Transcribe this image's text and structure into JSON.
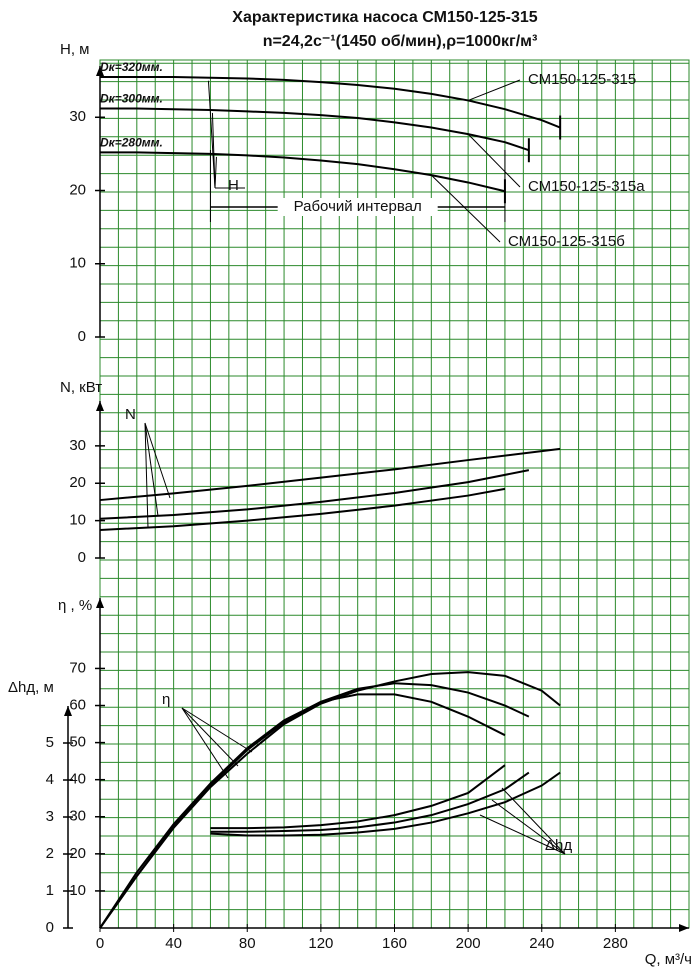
{
  "title": "Характеристика насоса СМ150-125-315",
  "subtitle": "n=24,2с⁻¹(1450 об/мин),ρ=1000кг/м³",
  "chart_data": [
    {
      "type": "line",
      "ylabel": "H, м",
      "ylim": [
        0,
        37
      ],
      "yticks": [
        0,
        10,
        20,
        30
      ],
      "series": [
        {
          "name": "СМ150-125-315",
          "annotation": "Dк=320мм.",
          "color": "#000000",
          "x": [
            0,
            20,
            40,
            60,
            80,
            100,
            120,
            140,
            160,
            180,
            200,
            220,
            240,
            250
          ],
          "values": [
            35.5,
            35.5,
            35.5,
            35.4,
            35.3,
            35.1,
            34.8,
            34.4,
            33.9,
            33.2,
            32.3,
            31.1,
            29.6,
            28.6
          ]
        },
        {
          "name": "СМ150-125-315а",
          "annotation": "Dк=300мм.",
          "color": "#000000",
          "x": [
            0,
            20,
            40,
            60,
            80,
            100,
            120,
            140,
            160,
            180,
            200,
            220,
            233
          ],
          "values": [
            31.2,
            31.2,
            31.1,
            31,
            30.8,
            30.6,
            30.3,
            29.9,
            29.3,
            28.6,
            27.7,
            26.6,
            25.5
          ]
        },
        {
          "name": "СМ150-125-315б",
          "annotation": "Dк=280мм.",
          "color": "#000000",
          "x": [
            0,
            20,
            40,
            60,
            80,
            100,
            120,
            140,
            160,
            180,
            200,
            220
          ],
          "values": [
            25.2,
            25.2,
            25.1,
            25,
            24.8,
            24.5,
            24.1,
            23.6,
            22.9,
            22.1,
            21.1,
            19.9
          ]
        }
      ],
      "curve_label": "H",
      "interval": {
        "label": "Рабочий интервал",
        "x": [
          60,
          220
        ]
      }
    },
    {
      "type": "line",
      "ylabel": "N, кВт",
      "ylim": [
        0,
        42
      ],
      "yticks": [
        0,
        10,
        20,
        30
      ],
      "curve_label": "N",
      "series": [
        {
          "color": "#000000",
          "x": [
            0,
            40,
            80,
            120,
            160,
            200,
            250
          ],
          "values": [
            15.5,
            17.3,
            19.3,
            21.5,
            23.7,
            26.2,
            29.2
          ]
        },
        {
          "color": "#000000",
          "x": [
            0,
            40,
            80,
            120,
            160,
            200,
            233
          ],
          "values": [
            10.5,
            11.5,
            13,
            15,
            17.4,
            20.3,
            23.5
          ]
        },
        {
          "color": "#000000",
          "x": [
            0,
            40,
            80,
            120,
            160,
            200,
            220
          ],
          "values": [
            7.5,
            8.5,
            10,
            11.8,
            14,
            16.7,
            18.5
          ]
        }
      ]
    },
    {
      "type": "line",
      "ylabel": "η , %",
      "ylim": [
        0,
        89
      ],
      "yticks": [
        10,
        20,
        30,
        40,
        50,
        60,
        70
      ],
      "curve_label": "η",
      "series": [
        {
          "color": "#000000",
          "x": [
            0,
            20,
            40,
            60,
            80,
            100,
            120,
            140,
            160,
            180,
            200,
            220,
            240,
            250
          ],
          "values": [
            0,
            14,
            27,
            38,
            47,
            55,
            60.5,
            64,
            66.5,
            68.5,
            69,
            68,
            64,
            60
          ]
        },
        {
          "color": "#000000",
          "x": [
            0,
            20,
            40,
            60,
            80,
            100,
            120,
            140,
            160,
            180,
            200,
            220,
            233
          ],
          "values": [
            0,
            14,
            27.5,
            38.5,
            48,
            55.5,
            61,
            64.5,
            66,
            65.5,
            63.5,
            60,
            57
          ]
        },
        {
          "color": "#000000",
          "x": [
            0,
            20,
            40,
            60,
            80,
            100,
            120,
            140,
            160,
            180,
            200,
            220
          ],
          "values": [
            0,
            15,
            28,
            39,
            48.5,
            56,
            61,
            63,
            63,
            61,
            57,
            52
          ]
        }
      ]
    },
    {
      "type": "line",
      "ylabel": "Δhд, м",
      "ylim": [
        0,
        6
      ],
      "yticks": [
        0,
        1,
        2,
        3,
        4,
        5
      ],
      "curve_label": "Δhд",
      "xlabel": "Q, м³/ч",
      "xlim": [
        0,
        320
      ],
      "xticks": [
        0,
        40,
        80,
        120,
        160,
        200,
        240,
        280
      ],
      "series": [
        {
          "color": "#000000",
          "x": [
            60,
            80,
            100,
            120,
            140,
            160,
            180,
            200,
            220,
            240,
            250
          ],
          "values": [
            2.55,
            2.5,
            2.5,
            2.52,
            2.58,
            2.68,
            2.85,
            3.1,
            3.4,
            3.85,
            4.2
          ]
        },
        {
          "color": "#000000",
          "x": [
            60,
            80,
            100,
            120,
            140,
            160,
            180,
            200,
            220,
            233
          ],
          "values": [
            2.6,
            2.6,
            2.62,
            2.65,
            2.72,
            2.85,
            3.05,
            3.35,
            3.75,
            4.2
          ]
        },
        {
          "color": "#000000",
          "x": [
            60,
            80,
            100,
            120,
            140,
            160,
            180,
            200,
            220
          ],
          "values": [
            2.7,
            2.7,
            2.72,
            2.78,
            2.88,
            3.05,
            3.3,
            3.65,
            4.4
          ]
        }
      ]
    }
  ]
}
